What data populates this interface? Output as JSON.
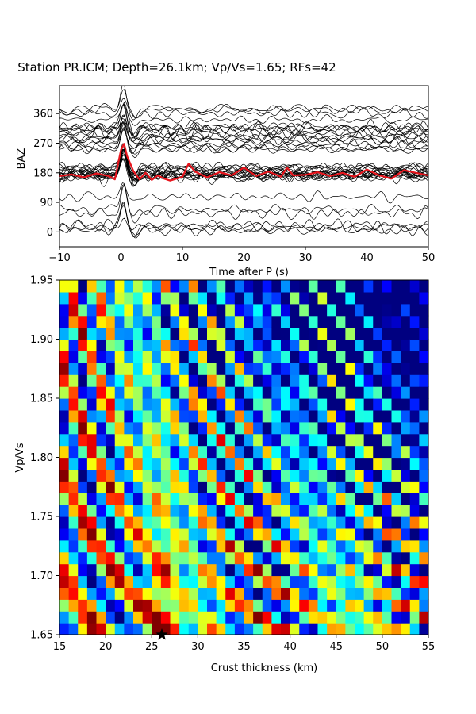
{
  "chart_data": [
    {
      "type": "line",
      "title": "Station PR.ICM; Depth=26.1km; Vp/Vs=1.65; RFs=42",
      "xlabel": "Time after P (s)",
      "ylabel": "BAZ",
      "xlim": [
        -10,
        50
      ],
      "ylim": [
        -45,
        445
      ],
      "xticks": [
        -10,
        0,
        10,
        20,
        30,
        40,
        50
      ],
      "yticks": [
        0,
        90,
        180,
        270,
        360
      ],
      "trace_count": 42,
      "trace_color": "#000000",
      "stack": {
        "color": "#e8141c",
        "baseline": 180,
        "x": [
          -10,
          -8,
          -6,
          -4,
          -2,
          -1,
          0,
          0.5,
          1,
          2,
          3,
          4,
          5,
          6,
          7,
          8,
          10,
          11,
          12,
          14,
          16,
          18,
          20,
          22,
          24,
          26,
          27,
          28,
          30,
          32,
          34,
          36,
          38,
          40,
          42,
          44,
          46,
          48,
          50
        ],
        "y": [
          170,
          175,
          166,
          178,
          170,
          160,
          250,
          268,
          230,
          186,
          160,
          180,
          158,
          172,
          162,
          156,
          168,
          208,
          184,
          166,
          182,
          172,
          196,
          170,
          184,
          168,
          196,
          172,
          174,
          182,
          170,
          180,
          168,
          190,
          172,
          162,
          188,
          180,
          172
        ]
      }
    },
    {
      "type": "heatmap",
      "xlabel": "Crust thickness (km)",
      "ylabel": "Vp/Vs",
      "xlim": [
        15,
        55
      ],
      "ylim": [
        1.65,
        1.95
      ],
      "xticks": [
        15,
        20,
        25,
        30,
        35,
        40,
        45,
        50,
        55
      ],
      "yticks": [
        1.65,
        1.7,
        1.75,
        1.8,
        1.85,
        1.9,
        1.95
      ],
      "grid_h_step": 1,
      "grid_k_step": 0.01,
      "colormap": "jet",
      "best": {
        "h": 26.1,
        "k": 1.65
      },
      "marker_color": "#000000"
    }
  ]
}
